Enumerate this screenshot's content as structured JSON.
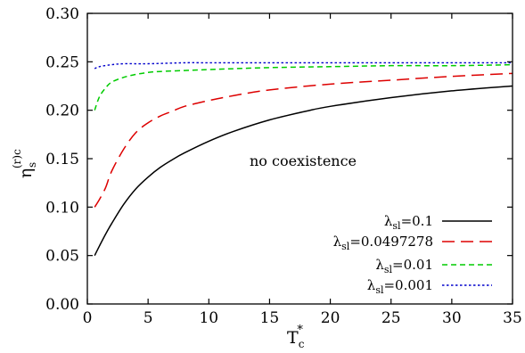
{
  "chart_data": {
    "type": "line",
    "xlabel": {
      "main": "T",
      "sub": "c",
      "sup": "*"
    },
    "ylabel": {
      "main": "η",
      "sub": "s",
      "sup": "(r)c"
    },
    "xlim": [
      0,
      35
    ],
    "ylim": [
      0,
      0.3
    ],
    "xticks": [
      "0",
      "5",
      "10",
      "15",
      "20",
      "25",
      "30",
      "35"
    ],
    "yticks": [
      "0.00",
      "0.05",
      "0.10",
      "0.15",
      "0.20",
      "0.25",
      "0.30"
    ],
    "annotation": "no coexistence",
    "legend_position": "bottom-right",
    "grid": false,
    "series": [
      {
        "name": "λsl=0.1",
        "legend": {
          "sym": "λ",
          "sub": "sl",
          "val": "=0.1"
        },
        "color": "#000000",
        "dash": "solid",
        "x": [
          0.6,
          1,
          1.5,
          2,
          3,
          4,
          5,
          6,
          7,
          8,
          10,
          12,
          15,
          18,
          20,
          25,
          30,
          35
        ],
        "y": [
          0.05,
          0.06,
          0.072,
          0.083,
          0.103,
          0.119,
          0.131,
          0.141,
          0.149,
          0.156,
          0.168,
          0.178,
          0.19,
          0.199,
          0.204,
          0.213,
          0.22,
          0.225
        ]
      },
      {
        "name": "λsl=0.0497278",
        "legend": {
          "sym": "λ",
          "sub": "sl",
          "val": "=0.0497278"
        },
        "color": "#dd0000",
        "dash": "long",
        "x": [
          0.6,
          1,
          1.5,
          2,
          3,
          4,
          5,
          6,
          7,
          8,
          10,
          12,
          15,
          20,
          25,
          30,
          35
        ],
        "y": [
          0.1,
          0.108,
          0.12,
          0.137,
          0.16,
          0.177,
          0.187,
          0.194,
          0.199,
          0.204,
          0.21,
          0.215,
          0.221,
          0.227,
          0.231,
          0.235,
          0.238
        ]
      },
      {
        "name": "λsl=0.01",
        "legend": {
          "sym": "λ",
          "sub": "sl",
          "val": "=0.01"
        },
        "color": "#00cc00",
        "dash": "medium",
        "x": [
          0.6,
          1,
          1.5,
          2,
          3,
          4,
          5,
          6,
          8,
          10,
          15,
          20,
          25,
          30,
          35
        ],
        "y": [
          0.2,
          0.214,
          0.223,
          0.229,
          0.234,
          0.237,
          0.239,
          0.24,
          0.241,
          0.242,
          0.244,
          0.245,
          0.246,
          0.246,
          0.247
        ]
      },
      {
        "name": "λsl=0.001",
        "legend": {
          "sym": "λ",
          "sub": "sl",
          "val": "=0.001"
        },
        "color": "#0000cc",
        "dash": "dotted",
        "x": [
          0.6,
          1,
          2,
          3,
          5,
          8,
          10,
          15,
          20,
          25,
          30,
          35
        ],
        "y": [
          0.243,
          0.245,
          0.247,
          0.248,
          0.248,
          0.249,
          0.249,
          0.249,
          0.249,
          0.249,
          0.249,
          0.249
        ]
      }
    ]
  }
}
